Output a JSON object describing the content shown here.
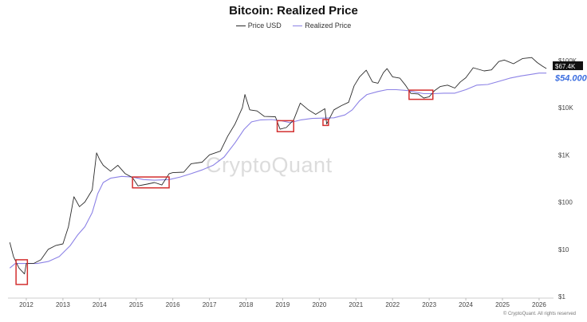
{
  "chart_data": {
    "type": "line",
    "title": "Bitcoin: Realized Price",
    "y_scale": "log",
    "ylim": [
      1,
      200000
    ],
    "xlim": [
      2011.5,
      2026.35
    ],
    "x_ticks": [
      2012,
      2013,
      2014,
      2015,
      2016,
      2017,
      2018,
      2019,
      2020,
      2021,
      2022,
      2023,
      2024,
      2025,
      2026
    ],
    "x_tick_labels": [
      "2012",
      "2013",
      "2014",
      "2015",
      "2016",
      "2017",
      "2018",
      "2019",
      "2020",
      "2021",
      "2022",
      "2023",
      "2024",
      "2025",
      "2026"
    ],
    "y_ticks": [
      1,
      10,
      100,
      1000,
      10000,
      100000
    ],
    "y_tick_labels": [
      "$1",
      "$10",
      "$100",
      "$1K",
      "$10K",
      "$100K"
    ],
    "legend_position": "top-center",
    "grid": false,
    "series": [
      {
        "name": "Price USD",
        "color": "#2b2b2b",
        "points": [
          [
            2011.55,
            14
          ],
          [
            2011.65,
            7
          ],
          [
            2011.8,
            4
          ],
          [
            2011.95,
            3
          ],
          [
            2012.0,
            5
          ],
          [
            2012.2,
            5
          ],
          [
            2012.4,
            6
          ],
          [
            2012.6,
            10
          ],
          [
            2012.8,
            12
          ],
          [
            2013.0,
            13
          ],
          [
            2013.15,
            30
          ],
          [
            2013.3,
            130
          ],
          [
            2013.45,
            80
          ],
          [
            2013.6,
            100
          ],
          [
            2013.8,
            180
          ],
          [
            2013.92,
            1100
          ],
          [
            2014.0,
            800
          ],
          [
            2014.1,
            600
          ],
          [
            2014.3,
            450
          ],
          [
            2014.5,
            600
          ],
          [
            2014.7,
            400
          ],
          [
            2014.9,
            330
          ],
          [
            2015.05,
            220
          ],
          [
            2015.3,
            240
          ],
          [
            2015.5,
            260
          ],
          [
            2015.7,
            230
          ],
          [
            2015.9,
            400
          ],
          [
            2016.0,
            420
          ],
          [
            2016.3,
            430
          ],
          [
            2016.5,
            650
          ],
          [
            2016.8,
            700
          ],
          [
            2017.0,
            1000
          ],
          [
            2017.3,
            1200
          ],
          [
            2017.5,
            2500
          ],
          [
            2017.7,
            4500
          ],
          [
            2017.9,
            10000
          ],
          [
            2017.97,
            19000
          ],
          [
            2018.1,
            9000
          ],
          [
            2018.3,
            8500
          ],
          [
            2018.5,
            6500
          ],
          [
            2018.8,
            6400
          ],
          [
            2018.93,
            3500
          ],
          [
            2019.1,
            3800
          ],
          [
            2019.3,
            5500
          ],
          [
            2019.48,
            12500
          ],
          [
            2019.7,
            9000
          ],
          [
            2019.9,
            7200
          ],
          [
            2020.15,
            9500
          ],
          [
            2020.2,
            4500
          ],
          [
            2020.4,
            9000
          ],
          [
            2020.6,
            11000
          ],
          [
            2020.8,
            13000
          ],
          [
            2020.95,
            29000
          ],
          [
            2021.1,
            45000
          ],
          [
            2021.28,
            62000
          ],
          [
            2021.45,
            35000
          ],
          [
            2021.6,
            33000
          ],
          [
            2021.75,
            55000
          ],
          [
            2021.85,
            67000
          ],
          [
            2022.0,
            45000
          ],
          [
            2022.2,
            42000
          ],
          [
            2022.35,
            30000
          ],
          [
            2022.5,
            20000
          ],
          [
            2022.7,
            19500
          ],
          [
            2022.85,
            16000
          ],
          [
            2023.0,
            17000
          ],
          [
            2023.15,
            23000
          ],
          [
            2023.3,
            28000
          ],
          [
            2023.5,
            30000
          ],
          [
            2023.7,
            26000
          ],
          [
            2023.85,
            35000
          ],
          [
            2024.0,
            43000
          ],
          [
            2024.2,
            70000
          ],
          [
            2024.5,
            60000
          ],
          [
            2024.7,
            63000
          ],
          [
            2024.9,
            95000
          ],
          [
            2025.05,
            102000
          ],
          [
            2025.3,
            85000
          ],
          [
            2025.55,
            110000
          ],
          [
            2025.8,
            115000
          ],
          [
            2025.95,
            90000
          ],
          [
            2026.1,
            75000
          ],
          [
            2026.2,
            67400
          ]
        ]
      },
      {
        "name": "Realized Price",
        "color": "#8c82e6",
        "points": [
          [
            2011.55,
            4
          ],
          [
            2011.7,
            5
          ],
          [
            2012.0,
            5
          ],
          [
            2012.3,
            5
          ],
          [
            2012.6,
            5.5
          ],
          [
            2012.9,
            7
          ],
          [
            2013.2,
            12
          ],
          [
            2013.4,
            20
          ],
          [
            2013.6,
            30
          ],
          [
            2013.8,
            60
          ],
          [
            2013.95,
            150
          ],
          [
            2014.1,
            260
          ],
          [
            2014.3,
            320
          ],
          [
            2014.6,
            350
          ],
          [
            2014.9,
            340
          ],
          [
            2015.2,
            300
          ],
          [
            2015.5,
            290
          ],
          [
            2015.9,
            300
          ],
          [
            2016.2,
            340
          ],
          [
            2016.5,
            400
          ],
          [
            2016.8,
            480
          ],
          [
            2017.1,
            600
          ],
          [
            2017.4,
            900
          ],
          [
            2017.7,
            1800
          ],
          [
            2017.95,
            3500
          ],
          [
            2018.15,
            5000
          ],
          [
            2018.4,
            5500
          ],
          [
            2018.7,
            5600
          ],
          [
            2018.95,
            5300
          ],
          [
            2019.2,
            4800
          ],
          [
            2019.5,
            5500
          ],
          [
            2019.8,
            5900
          ],
          [
            2020.1,
            6000
          ],
          [
            2020.4,
            6100
          ],
          [
            2020.7,
            7000
          ],
          [
            2020.9,
            9000
          ],
          [
            2021.1,
            14000
          ],
          [
            2021.3,
            19000
          ],
          [
            2021.6,
            22000
          ],
          [
            2021.85,
            24000
          ],
          [
            2022.1,
            24000
          ],
          [
            2022.4,
            23000
          ],
          [
            2022.6,
            21500
          ],
          [
            2022.85,
            19800
          ],
          [
            2023.1,
            19800
          ],
          [
            2023.4,
            20300
          ],
          [
            2023.7,
            20300
          ],
          [
            2024.0,
            24000
          ],
          [
            2024.3,
            30000
          ],
          [
            2024.6,
            31000
          ],
          [
            2024.9,
            36000
          ],
          [
            2025.2,
            42000
          ],
          [
            2025.5,
            47000
          ],
          [
            2025.8,
            51000
          ],
          [
            2026.0,
            54000
          ],
          [
            2026.2,
            54000
          ]
        ]
      }
    ],
    "highlight_boxes": [
      {
        "x_from": 2011.72,
        "x_to": 2012.03,
        "y_from": 1.8,
        "y_to": 6
      },
      {
        "x_from": 2014.9,
        "x_to": 2015.9,
        "y_from": 200,
        "y_to": 340
      },
      {
        "x_from": 2018.85,
        "x_to": 2019.3,
        "y_from": 3100,
        "y_to": 5300
      },
      {
        "x_from": 2020.1,
        "x_to": 2020.25,
        "y_from": 4200,
        "y_to": 5600
      },
      {
        "x_from": 2022.45,
        "x_to": 2023.1,
        "y_from": 15000,
        "y_to": 23500
      }
    ],
    "highlight_color": "#d32f2f",
    "price_labels": [
      {
        "text": "$67.4K",
        "value": 67400,
        "background": "#111111",
        "text_color": "#ffffff"
      },
      {
        "text": "$54.000",
        "value": 54000,
        "background": "none",
        "text_color": "#3d6fe0"
      }
    ]
  },
  "legend": {
    "price_label": "Price USD",
    "realized_label": "Realized Price",
    "price_color": "#2b2b2b",
    "realized_color": "#8c82e6"
  },
  "watermark": "CryptoQuant",
  "copyright": "© CryptoQuant. All rights reserved"
}
